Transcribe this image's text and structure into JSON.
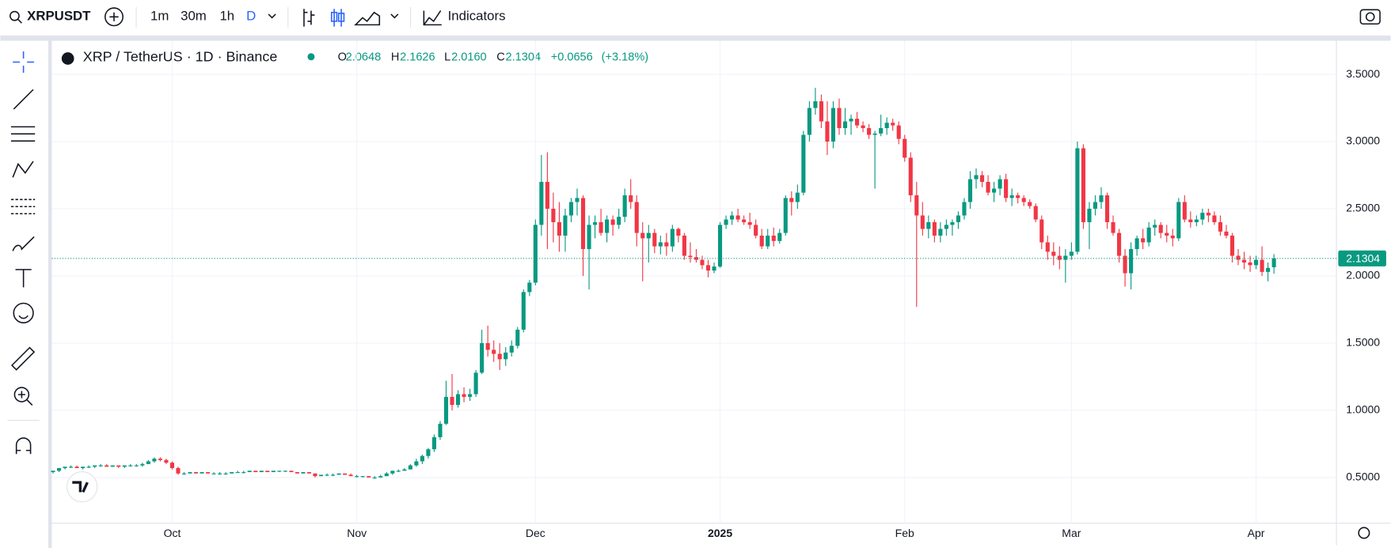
{
  "toolbar": {
    "symbol": "XRPUSDT",
    "intervals": [
      "1m",
      "30m",
      "1h",
      "D"
    ],
    "indicators": "Indicators"
  },
  "chart_data": {
    "type": "candlestick",
    "title": "XRP / TetherUS · 1D · Binance",
    "legend_letters": [
      "O",
      "H",
      "L",
      "C"
    ],
    "legend_values": [
      "2.0648",
      "2.1626",
      "2.0160",
      "2.1304"
    ],
    "change": "+0.0656",
    "change_pct": "(+3.18%)",
    "up_color": "#089981",
    "down_color": "#f23645",
    "grid": true,
    "ylim": [
      0.16,
      3.75
    ],
    "yticks": [
      {
        "value": 0.5,
        "label": "0.5000"
      },
      {
        "value": 1,
        "label": "1.0000"
      },
      {
        "value": 1.5,
        "label": "1.5000"
      },
      {
        "value": 2,
        "label": "2.0000"
      },
      {
        "value": 2.5,
        "label": "2.5000"
      },
      {
        "value": 3,
        "label": "3.0000"
      },
      {
        "value": 3.5,
        "label": "3.5000"
      }
    ],
    "xlim": [
      -0.2,
      215.5
    ],
    "xticks": [
      {
        "value": 20,
        "label": "Oct"
      },
      {
        "value": 51,
        "label": "Nov"
      },
      {
        "value": 81,
        "label": "Dec"
      },
      {
        "value": 112,
        "label": "2025"
      },
      {
        "value": 143,
        "label": "Feb"
      },
      {
        "value": 171,
        "label": "Mar"
      },
      {
        "value": 202,
        "label": "Apr"
      }
    ],
    "candles": [
      [
        0.54,
        0.55,
        0.53,
        0.55
      ],
      [
        0.55,
        0.57,
        0.54,
        0.57
      ],
      [
        0.57,
        0.58,
        0.56,
        0.58
      ],
      [
        0.58,
        0.59,
        0.57,
        0.58
      ],
      [
        0.58,
        0.59,
        0.57,
        0.57
      ],
      [
        0.57,
        0.58,
        0.56,
        0.58
      ],
      [
        0.58,
        0.59,
        0.57,
        0.58
      ],
      [
        0.58,
        0.59,
        0.57,
        0.59
      ],
      [
        0.59,
        0.6,
        0.58,
        0.59
      ],
      [
        0.59,
        0.6,
        0.58,
        0.58
      ],
      [
        0.58,
        0.59,
        0.58,
        0.59
      ],
      [
        0.59,
        0.59,
        0.57,
        0.58
      ],
      [
        0.58,
        0.59,
        0.57,
        0.59
      ],
      [
        0.59,
        0.6,
        0.58,
        0.59
      ],
      [
        0.59,
        0.6,
        0.58,
        0.59
      ],
      [
        0.59,
        0.61,
        0.58,
        0.6
      ],
      [
        0.6,
        0.63,
        0.6,
        0.62
      ],
      [
        0.62,
        0.65,
        0.61,
        0.64
      ],
      [
        0.64,
        0.65,
        0.62,
        0.63
      ],
      [
        0.63,
        0.64,
        0.6,
        0.61
      ],
      [
        0.61,
        0.62,
        0.56,
        0.57
      ],
      [
        0.57,
        0.58,
        0.52,
        0.53
      ],
      [
        0.53,
        0.54,
        0.52,
        0.53
      ],
      [
        0.53,
        0.54,
        0.53,
        0.54
      ],
      [
        0.54,
        0.54,
        0.53,
        0.53
      ],
      [
        0.53,
        0.54,
        0.53,
        0.54
      ],
      [
        0.54,
        0.54,
        0.53,
        0.53
      ],
      [
        0.53,
        0.54,
        0.53,
        0.53
      ],
      [
        0.53,
        0.54,
        0.52,
        0.53
      ],
      [
        0.53,
        0.54,
        0.52,
        0.53
      ],
      [
        0.53,
        0.54,
        0.53,
        0.54
      ],
      [
        0.54,
        0.55,
        0.54,
        0.54
      ],
      [
        0.54,
        0.55,
        0.53,
        0.54
      ],
      [
        0.54,
        0.55,
        0.54,
        0.55
      ],
      [
        0.55,
        0.55,
        0.54,
        0.54
      ],
      [
        0.54,
        0.55,
        0.54,
        0.55
      ],
      [
        0.55,
        0.55,
        0.54,
        0.54
      ],
      [
        0.54,
        0.55,
        0.54,
        0.55
      ],
      [
        0.55,
        0.55,
        0.54,
        0.55
      ],
      [
        0.55,
        0.55,
        0.54,
        0.55
      ],
      [
        0.55,
        0.55,
        0.54,
        0.54
      ],
      [
        0.54,
        0.54,
        0.53,
        0.53
      ],
      [
        0.53,
        0.54,
        0.53,
        0.54
      ],
      [
        0.54,
        0.54,
        0.53,
        0.53
      ],
      [
        0.53,
        0.53,
        0.5,
        0.51
      ],
      [
        0.51,
        0.52,
        0.51,
        0.52
      ],
      [
        0.52,
        0.53,
        0.51,
        0.52
      ],
      [
        0.52,
        0.53,
        0.51,
        0.52
      ],
      [
        0.52,
        0.53,
        0.52,
        0.53
      ],
      [
        0.53,
        0.53,
        0.52,
        0.52
      ],
      [
        0.52,
        0.53,
        0.51,
        0.51
      ],
      [
        0.51,
        0.52,
        0.5,
        0.51
      ],
      [
        0.51,
        0.51,
        0.5,
        0.51
      ],
      [
        0.51,
        0.51,
        0.5,
        0.5
      ],
      [
        0.5,
        0.51,
        0.49,
        0.5
      ],
      [
        0.5,
        0.52,
        0.5,
        0.51
      ],
      [
        0.51,
        0.54,
        0.51,
        0.53
      ],
      [
        0.53,
        0.55,
        0.52,
        0.55
      ],
      [
        0.55,
        0.56,
        0.54,
        0.55
      ],
      [
        0.55,
        0.57,
        0.55,
        0.56
      ],
      [
        0.56,
        0.6,
        0.56,
        0.59
      ],
      [
        0.59,
        0.64,
        0.58,
        0.62
      ],
      [
        0.62,
        0.67,
        0.6,
        0.66
      ],
      [
        0.66,
        0.72,
        0.64,
        0.71
      ],
      [
        0.71,
        0.82,
        0.69,
        0.8
      ],
      [
        0.8,
        0.92,
        0.78,
        0.9
      ],
      [
        0.9,
        1.22,
        0.89,
        1.1
      ],
      [
        1.1,
        1.27,
        1.0,
        1.04
      ],
      [
        1.04,
        1.15,
        1.02,
        1.12
      ],
      [
        1.12,
        1.17,
        1.06,
        1.1
      ],
      [
        1.1,
        1.16,
        1.07,
        1.12
      ],
      [
        1.12,
        1.3,
        1.1,
        1.28
      ],
      [
        1.28,
        1.6,
        1.27,
        1.5
      ],
      [
        1.5,
        1.63,
        1.4,
        1.45
      ],
      [
        1.45,
        1.52,
        1.36,
        1.42
      ],
      [
        1.42,
        1.5,
        1.3,
        1.38
      ],
      [
        1.38,
        1.47,
        1.33,
        1.43
      ],
      [
        1.43,
        1.52,
        1.4,
        1.48
      ],
      [
        1.48,
        1.62,
        1.46,
        1.6
      ],
      [
        1.6,
        1.9,
        1.58,
        1.88
      ],
      [
        1.88,
        1.97,
        1.85,
        1.95
      ],
      [
        1.95,
        2.42,
        1.93,
        2.38
      ],
      [
        2.38,
        2.9,
        2.3,
        2.7
      ],
      [
        2.7,
        2.92,
        2.2,
        2.5
      ],
      [
        2.5,
        2.62,
        2.25,
        2.4
      ],
      [
        2.4,
        2.55,
        2.18,
        2.3
      ],
      [
        2.3,
        2.5,
        2.18,
        2.45
      ],
      [
        2.45,
        2.58,
        2.4,
        2.55
      ],
      [
        2.55,
        2.65,
        2.45,
        2.58
      ],
      [
        2.58,
        2.6,
        2.0,
        2.2
      ],
      [
        2.2,
        2.45,
        1.9,
        2.38
      ],
      [
        2.38,
        2.45,
        2.28,
        2.4
      ],
      [
        2.4,
        2.5,
        2.3,
        2.32
      ],
      [
        2.32,
        2.45,
        2.25,
        2.42
      ],
      [
        2.42,
        2.45,
        2.3,
        2.38
      ],
      [
        2.38,
        2.5,
        2.35,
        2.44
      ],
      [
        2.44,
        2.65,
        2.4,
        2.6
      ],
      [
        2.6,
        2.72,
        2.5,
        2.55
      ],
      [
        2.55,
        2.6,
        2.22,
        2.32
      ],
      [
        2.32,
        2.4,
        1.96,
        2.28
      ],
      [
        2.28,
        2.38,
        2.1,
        2.32
      ],
      [
        2.32,
        2.35,
        2.17,
        2.22
      ],
      [
        2.22,
        2.3,
        2.16,
        2.25
      ],
      [
        2.25,
        2.32,
        2.15,
        2.22
      ],
      [
        2.22,
        2.38,
        2.18,
        2.35
      ],
      [
        2.35,
        2.36,
        2.25,
        2.3
      ],
      [
        2.3,
        2.32,
        2.12,
        2.15
      ],
      [
        2.15,
        2.25,
        2.1,
        2.14
      ],
      [
        2.14,
        2.2,
        2.1,
        2.12
      ],
      [
        2.12,
        2.15,
        2.05,
        2.08
      ],
      [
        2.08,
        2.12,
        1.99,
        2.04
      ],
      [
        2.04,
        2.1,
        2.02,
        2.07
      ],
      [
        2.07,
        2.4,
        2.06,
        2.38
      ],
      [
        2.38,
        2.45,
        2.35,
        2.42
      ],
      [
        2.42,
        2.48,
        2.38,
        2.45
      ],
      [
        2.45,
        2.5,
        2.4,
        2.42
      ],
      [
        2.42,
        2.45,
        2.38,
        2.4
      ],
      [
        2.4,
        2.47,
        2.35,
        2.38
      ],
      [
        2.38,
        2.42,
        2.28,
        2.3
      ],
      [
        2.3,
        2.35,
        2.2,
        2.22
      ],
      [
        2.22,
        2.35,
        2.2,
        2.3
      ],
      [
        2.3,
        2.36,
        2.22,
        2.26
      ],
      [
        2.26,
        2.35,
        2.24,
        2.32
      ],
      [
        2.32,
        2.6,
        2.3,
        2.58
      ],
      [
        2.58,
        2.63,
        2.45,
        2.55
      ],
      [
        2.55,
        2.68,
        2.5,
        2.62
      ],
      [
        2.62,
        3.08,
        2.6,
        3.05
      ],
      [
        3.05,
        3.3,
        3.0,
        3.25
      ],
      [
        3.25,
        3.4,
        3.2,
        3.3
      ],
      [
        3.3,
        3.35,
        3.1,
        3.15
      ],
      [
        3.15,
        3.3,
        2.9,
        3.0
      ],
      [
        3.0,
        3.3,
        2.95,
        3.25
      ],
      [
        3.25,
        3.32,
        3.05,
        3.1
      ],
      [
        3.1,
        3.25,
        3.05,
        3.15
      ],
      [
        3.15,
        3.2,
        3.05,
        3.17
      ],
      [
        3.17,
        3.22,
        3.1,
        3.12
      ],
      [
        3.12,
        3.15,
        3.07,
        3.1
      ],
      [
        3.1,
        3.13,
        3.02,
        3.05
      ],
      [
        3.05,
        3.08,
        2.65,
        3.06
      ],
      [
        3.06,
        3.2,
        3.04,
        3.1
      ],
      [
        3.1,
        3.18,
        3.05,
        3.14
      ],
      [
        3.14,
        3.17,
        3.08,
        3.12
      ],
      [
        3.12,
        3.15,
        2.98,
        3.02
      ],
      [
        3.02,
        3.05,
        2.85,
        2.88
      ],
      [
        2.88,
        2.92,
        2.55,
        2.6
      ],
      [
        2.6,
        2.7,
        1.77,
        2.45
      ],
      [
        2.45,
        2.55,
        2.3,
        2.35
      ],
      [
        2.35,
        2.45,
        2.28,
        2.4
      ],
      [
        2.4,
        2.42,
        2.25,
        2.3
      ],
      [
        2.3,
        2.4,
        2.25,
        2.35
      ],
      [
        2.35,
        2.42,
        2.3,
        2.38
      ],
      [
        2.38,
        2.42,
        2.3,
        2.4
      ],
      [
        2.4,
        2.48,
        2.35,
        2.45
      ],
      [
        2.45,
        2.58,
        2.42,
        2.55
      ],
      [
        2.55,
        2.78,
        2.5,
        2.72
      ],
      [
        2.72,
        2.8,
        2.65,
        2.75
      ],
      [
        2.75,
        2.78,
        2.66,
        2.7
      ],
      [
        2.7,
        2.75,
        2.6,
        2.62
      ],
      [
        2.62,
        2.7,
        2.55,
        2.65
      ],
      [
        2.65,
        2.75,
        2.6,
        2.72
      ],
      [
        2.72,
        2.76,
        2.55,
        2.58
      ],
      [
        2.58,
        2.65,
        2.52,
        2.6
      ],
      [
        2.6,
        2.62,
        2.54,
        2.58
      ],
      [
        2.58,
        2.6,
        2.52,
        2.55
      ],
      [
        2.55,
        2.57,
        2.5,
        2.52
      ],
      [
        2.52,
        2.54,
        2.4,
        2.42
      ],
      [
        2.42,
        2.45,
        2.2,
        2.25
      ],
      [
        2.25,
        2.3,
        2.12,
        2.18
      ],
      [
        2.18,
        2.25,
        2.08,
        2.15
      ],
      [
        2.15,
        2.22,
        2.05,
        2.12
      ],
      [
        2.12,
        2.2,
        1.95,
        2.15
      ],
      [
        2.15,
        2.25,
        2.12,
        2.18
      ],
      [
        2.18,
        3.0,
        2.16,
        2.95
      ],
      [
        2.95,
        2.98,
        2.35,
        2.4
      ],
      [
        2.4,
        2.55,
        2.2,
        2.5
      ],
      [
        2.5,
        2.6,
        2.45,
        2.55
      ],
      [
        2.55,
        2.66,
        2.5,
        2.6
      ],
      [
        2.6,
        2.62,
        2.35,
        2.4
      ],
      [
        2.4,
        2.45,
        2.3,
        2.32
      ],
      [
        2.32,
        2.35,
        2.1,
        2.15
      ],
      [
        2.15,
        2.2,
        1.92,
        2.02
      ],
      [
        2.02,
        2.25,
        1.9,
        2.2
      ],
      [
        2.2,
        2.3,
        2.15,
        2.28
      ],
      [
        2.28,
        2.35,
        2.2,
        2.25
      ],
      [
        2.25,
        2.4,
        2.22,
        2.36
      ],
      [
        2.36,
        2.42,
        2.3,
        2.38
      ],
      [
        2.38,
        2.4,
        2.28,
        2.32
      ],
      [
        2.32,
        2.38,
        2.25,
        2.3
      ],
      [
        2.3,
        2.35,
        2.22,
        2.28
      ],
      [
        2.28,
        2.58,
        2.26,
        2.55
      ],
      [
        2.55,
        2.6,
        2.4,
        2.42
      ],
      [
        2.42,
        2.48,
        2.36,
        2.4
      ],
      [
        2.4,
        2.45,
        2.37,
        2.42
      ],
      [
        2.42,
        2.5,
        2.38,
        2.47
      ],
      [
        2.47,
        2.5,
        2.4,
        2.45
      ],
      [
        2.45,
        2.48,
        2.38,
        2.4
      ],
      [
        2.4,
        2.45,
        2.3,
        2.33
      ],
      [
        2.33,
        2.38,
        2.28,
        2.3
      ],
      [
        2.3,
        2.32,
        2.1,
        2.15
      ],
      [
        2.15,
        2.2,
        2.08,
        2.12
      ],
      [
        2.12,
        2.18,
        2.05,
        2.1
      ],
      [
        2.1,
        2.15,
        2.03,
        2.08
      ],
      [
        2.08,
        2.15,
        2.05,
        2.12
      ],
      [
        2.12,
        2.22,
        2.0,
        2.03
      ],
      [
        2.03,
        2.1,
        1.96,
        2.06
      ],
      [
        2.0648,
        2.1626,
        2.016,
        2.1304
      ]
    ]
  }
}
